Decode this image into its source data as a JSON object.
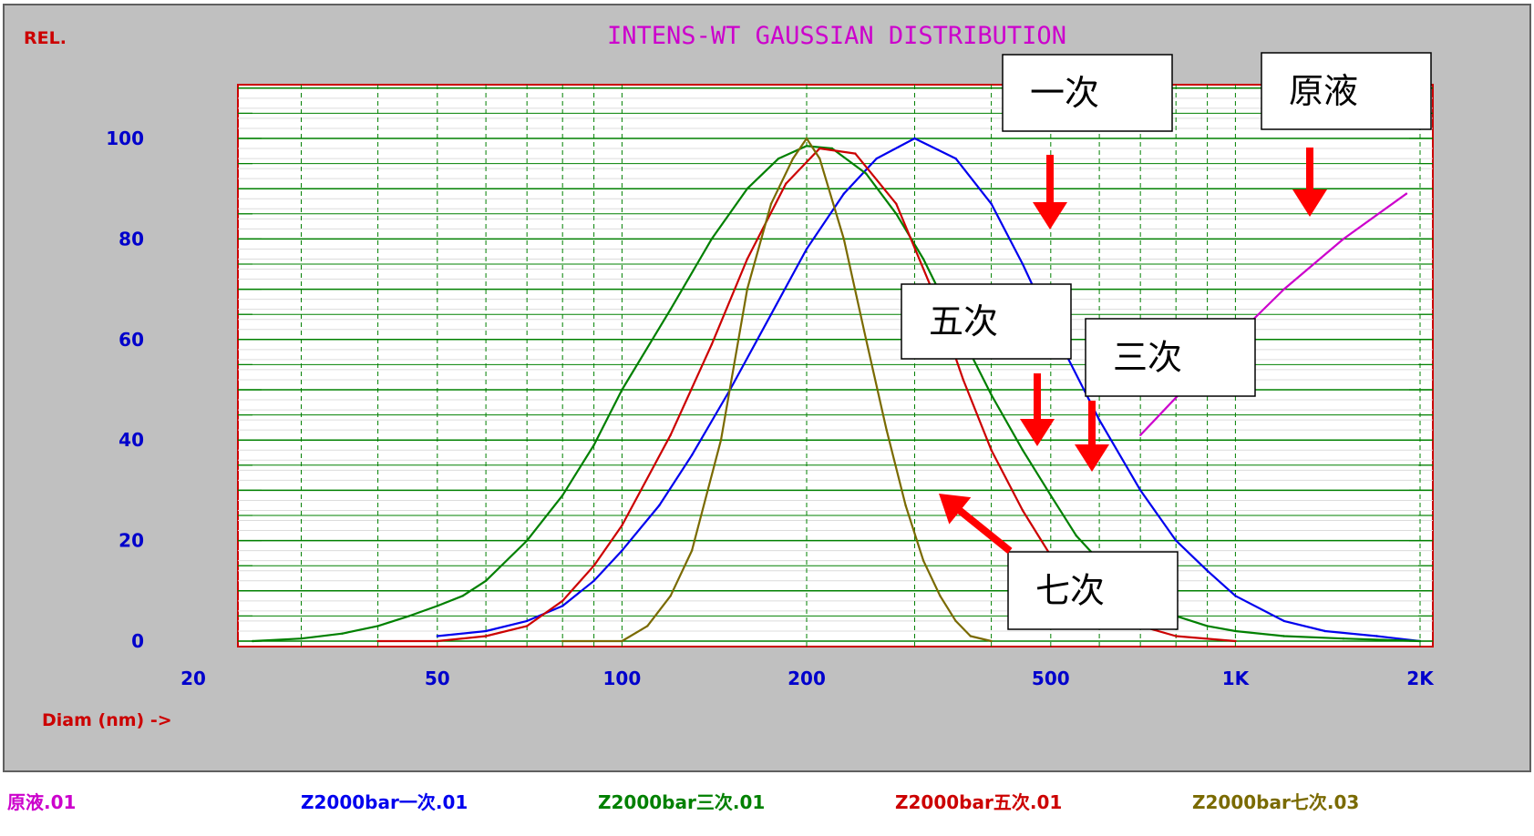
{
  "chart_data": {
    "type": "line",
    "title": "INTENS-WT GAUSSIAN DISTRIBUTION",
    "ylabel": "REL.",
    "xlabel": "Diam (nm) ->",
    "x_scale": "log",
    "xlim": [
      20,
      2000
    ],
    "ylim": [
      0,
      100
    ],
    "x_ticks": [
      {
        "v": 20,
        "label": "20"
      },
      {
        "v": 50,
        "label": "50"
      },
      {
        "v": 100,
        "label": "100"
      },
      {
        "v": 200,
        "label": "200"
      },
      {
        "v": 500,
        "label": "500"
      },
      {
        "v": 1000,
        "label": "1K"
      },
      {
        "v": 2000,
        "label": "2K"
      }
    ],
    "y_ticks": [
      {
        "v": 0,
        "label": "0"
      },
      {
        "v": 20,
        "label": "20"
      },
      {
        "v": 40,
        "label": "40"
      },
      {
        "v": 60,
        "label": "60"
      },
      {
        "v": 80,
        "label": "80"
      },
      {
        "v": 100,
        "label": "100"
      }
    ],
    "grid": true,
    "legend_position": "bottom",
    "series": [
      {
        "name": "原液.01",
        "color": "#cc00cc",
        "x": [
          700,
          900,
          1200,
          1500,
          1900
        ],
        "y": [
          41,
          55,
          70,
          80,
          89
        ]
      },
      {
        "name": "Z2000bar一次.01",
        "color": "#0000ee",
        "x": [
          50,
          60,
          70,
          80,
          90,
          100,
          115,
          130,
          150,
          175,
          200,
          230,
          260,
          300,
          350,
          400,
          450,
          500,
          600,
          700,
          800,
          900,
          1000,
          1200,
          1400,
          1700,
          2000
        ],
        "y": [
          1,
          2,
          4,
          7,
          12,
          18,
          27,
          37,
          50,
          65,
          78,
          89,
          96,
          100,
          96,
          87,
          75,
          63,
          44,
          30,
          20,
          14,
          9,
          4,
          2,
          1,
          0
        ]
      },
      {
        "name": "Z2000bar三次.01",
        "color": "#008000",
        "x": [
          25,
          30,
          35,
          40,
          45,
          50,
          55,
          60,
          70,
          80,
          90,
          100,
          120,
          140,
          160,
          180,
          200,
          220,
          250,
          280,
          310,
          350,
          400,
          450,
          500,
          550,
          600,
          700,
          800,
          900,
          1000,
          1200,
          1500,
          2000
        ],
        "y": [
          0,
          0.5,
          1.5,
          3,
          5,
          7,
          9,
          12,
          20,
          29,
          39,
          50,
          66,
          80,
          90,
          96,
          98.5,
          98,
          93,
          85,
          76,
          63,
          49,
          38,
          29,
          21,
          16,
          9,
          5,
          3,
          2,
          1,
          0.5,
          0
        ]
      },
      {
        "name": "Z2000bar五次.01",
        "color": "#cc0000",
        "x": [
          40,
          50,
          60,
          70,
          80,
          90,
          100,
          120,
          140,
          160,
          185,
          210,
          240,
          280,
          320,
          360,
          400,
          450,
          500,
          600,
          700,
          800,
          1000
        ],
        "y": [
          0,
          0,
          1,
          3,
          8,
          15,
          23,
          41,
          59,
          76,
          91,
          98,
          97,
          87,
          70,
          52,
          38,
          26,
          17,
          7,
          3,
          1,
          0
        ]
      },
      {
        "name": "Z2000bar七次.03",
        "color": "#7a6a00",
        "x": [
          80,
          100,
          110,
          120,
          130,
          145,
          160,
          175,
          190,
          200,
          210,
          230,
          250,
          270,
          290,
          310,
          330,
          350,
          370,
          400
        ],
        "y": [
          0,
          0,
          3,
          9,
          18,
          40,
          70,
          87,
          96,
          100,
          96,
          80,
          60,
          42,
          27,
          16,
          9,
          4,
          1,
          0
        ]
      }
    ],
    "annotations": [
      {
        "text": "一次"
      },
      {
        "text": "原液"
      },
      {
        "text": "五次"
      },
      {
        "text": "三次"
      },
      {
        "text": "七次"
      }
    ]
  }
}
